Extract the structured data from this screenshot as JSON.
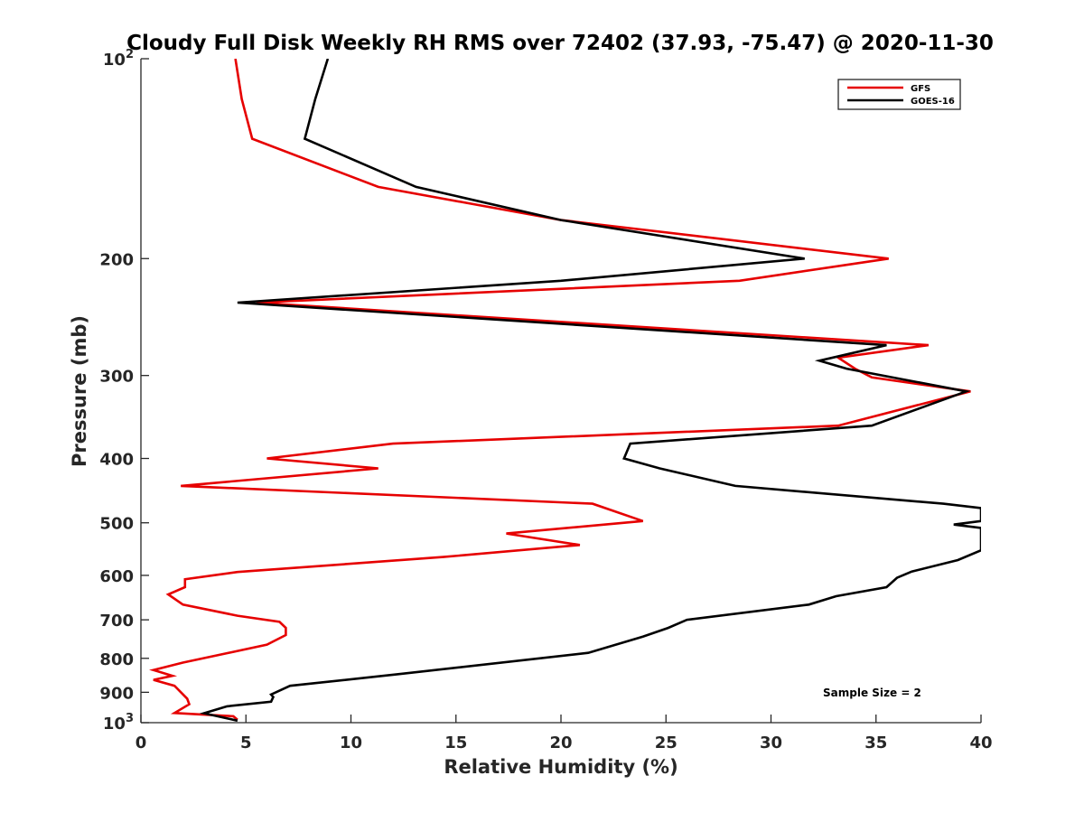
{
  "chart_data": {
    "type": "line",
    "title": "Cloudy Full Disk Weekly RH RMS over 72402 (37.93, -75.47) @ 2020-11-30",
    "xlabel": "Relative Humidity (%)",
    "ylabel": "Pressure (mb)",
    "xlim": [
      0,
      40
    ],
    "ylim": [
      100,
      1000
    ],
    "y_scale": "log",
    "y_reversed": true,
    "grid": false,
    "legend_position": "top-right",
    "x_ticks": [
      "0",
      "5",
      "10",
      "15",
      "20",
      "25",
      "30",
      "35",
      "40"
    ],
    "y_ticks": [
      {
        "value": 100,
        "base": "10",
        "exp": "2"
      },
      {
        "value": 200,
        "label": "200"
      },
      {
        "value": 300,
        "label": "300"
      },
      {
        "value": 400,
        "label": "400"
      },
      {
        "value": 500,
        "label": "500"
      },
      {
        "value": 600,
        "label": "600"
      },
      {
        "value": 700,
        "label": "700"
      },
      {
        "value": 800,
        "label": "800"
      },
      {
        "value": 900,
        "label": "900"
      },
      {
        "value": 1000,
        "base": "10",
        "exp": "3"
      }
    ],
    "annotation": "Sample Size = 2",
    "series": [
      {
        "name": "GFS",
        "color": "#e60000",
        "points": [
          [
            4.5,
            100
          ],
          [
            4.8,
            115
          ],
          [
            5.3,
            132
          ],
          [
            11.3,
            156
          ],
          [
            20.0,
            175
          ],
          [
            35.6,
            200
          ],
          [
            28.5,
            216
          ],
          [
            5.5,
            233
          ],
          [
            37.5,
            270
          ],
          [
            33.2,
            282
          ],
          [
            34.0,
            293
          ],
          [
            34.8,
            302
          ],
          [
            39.5,
            317
          ],
          [
            33.2,
            357
          ],
          [
            12.0,
            380
          ],
          [
            6.0,
            400
          ],
          [
            11.3,
            414
          ],
          [
            1.9,
            440
          ],
          [
            21.5,
            468
          ],
          [
            23.9,
            497
          ],
          [
            17.4,
            519
          ],
          [
            20.9,
            540
          ],
          [
            14.4,
            563
          ],
          [
            4.6,
            593
          ],
          [
            2.1,
            608
          ],
          [
            2.1,
            625
          ],
          [
            1.3,
            641
          ],
          [
            2.0,
            664
          ],
          [
            4.6,
            690
          ],
          [
            6.6,
            705
          ],
          [
            6.9,
            720
          ],
          [
            6.9,
            738
          ],
          [
            6.0,
            763
          ],
          [
            2.0,
            812
          ],
          [
            0.6,
            833
          ],
          [
            1.5,
            850
          ],
          [
            0.6,
            862
          ],
          [
            1.6,
            880
          ],
          [
            2.2,
            920
          ],
          [
            2.3,
            938
          ],
          [
            1.6,
            967
          ],
          [
            4.4,
            978
          ],
          [
            4.6,
            990
          ]
        ]
      },
      {
        "name": "GOES-16",
        "color": "#000000",
        "points": [
          [
            8.9,
            100
          ],
          [
            8.3,
            115
          ],
          [
            7.8,
            132
          ],
          [
            13.1,
            156
          ],
          [
            20.0,
            175
          ],
          [
            31.6,
            200
          ],
          [
            20.0,
            216
          ],
          [
            4.6,
            233
          ],
          [
            35.5,
            270
          ],
          [
            32.3,
            285
          ],
          [
            33.6,
            293
          ],
          [
            39.3,
            317
          ],
          [
            34.8,
            357
          ],
          [
            23.3,
            380
          ],
          [
            23.0,
            400
          ],
          [
            24.7,
            414
          ],
          [
            28.3,
            440
          ],
          [
            38.2,
            468
          ],
          [
            40.0,
            475
          ],
          [
            40.0,
            497
          ],
          [
            38.7,
            503
          ],
          [
            40.0,
            509
          ],
          [
            40.0,
            550
          ],
          [
            38.9,
            569
          ],
          [
            36.7,
            592
          ],
          [
            36.0,
            605
          ],
          [
            35.5,
            625
          ],
          [
            33.1,
            645
          ],
          [
            31.8,
            664
          ],
          [
            26.0,
            700
          ],
          [
            25.1,
            720
          ],
          [
            23.9,
            742
          ],
          [
            21.3,
            785
          ],
          [
            12.3,
            845
          ],
          [
            7.1,
            880
          ],
          [
            6.2,
            907
          ],
          [
            6.3,
            915
          ],
          [
            6.2,
            930
          ],
          [
            4.1,
            945
          ],
          [
            3.0,
            968
          ],
          [
            4.6,
            993
          ]
        ]
      }
    ]
  }
}
